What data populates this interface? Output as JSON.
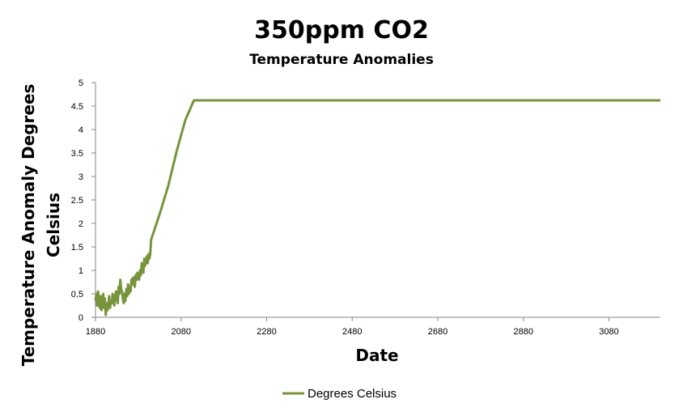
{
  "chart_data": {
    "type": "line",
    "title": "350ppm CO2",
    "subtitle": "Temperature Anomalies",
    "xlabel": "Date",
    "ylabel_line1": "Temperature Anomaly Degrees",
    "ylabel_line2": "Celsius",
    "xlim": [
      1880,
      3200
    ],
    "ylim": [
      0,
      5
    ],
    "x_ticks": [
      "1880",
      "2080",
      "2280",
      "2480",
      "2680",
      "2880",
      "3080"
    ],
    "y_ticks": [
      "0",
      "0.5",
      "1",
      "1.5",
      "2",
      "2.5",
      "3",
      "3.5",
      "4",
      "4.5",
      "5"
    ],
    "grid": false,
    "legend_position": "bottom",
    "colors": {
      "series": "#77933c",
      "axis": "#868686"
    },
    "series": [
      {
        "name": "Degrees Celsius",
        "x": [
          1880,
          1882,
          1884,
          1886,
          1888,
          1890,
          1892,
          1894,
          1896,
          1898,
          1900,
          1902,
          1904,
          1906,
          1908,
          1910,
          1912,
          1914,
          1916,
          1918,
          1920,
          1922,
          1924,
          1926,
          1928,
          1930,
          1932,
          1934,
          1936,
          1938,
          1940,
          1942,
          1944,
          1946,
          1948,
          1950,
          1952,
          1954,
          1956,
          1958,
          1960,
          1962,
          1964,
          1966,
          1968,
          1970,
          1972,
          1974,
          1976,
          1978,
          1980,
          1982,
          1984,
          1986,
          1988,
          1990,
          1992,
          1994,
          1996,
          1998,
          2000,
          2002,
          2004,
          2006,
          2008,
          2010,
          2030,
          2050,
          2070,
          2090,
          2110,
          2120,
          3200
        ],
        "y": [
          0.35,
          0.5,
          0.25,
          0.55,
          0.3,
          0.2,
          0.45,
          0.15,
          0.35,
          0.5,
          0.2,
          0.4,
          0.05,
          0.3,
          0.15,
          0.25,
          0.45,
          0.2,
          0.35,
          0.3,
          0.5,
          0.35,
          0.25,
          0.45,
          0.55,
          0.4,
          0.3,
          0.65,
          0.5,
          0.8,
          0.6,
          0.55,
          0.4,
          0.3,
          0.5,
          0.35,
          0.6,
          0.45,
          0.7,
          0.5,
          0.65,
          0.55,
          0.8,
          0.7,
          0.85,
          0.75,
          0.65,
          0.9,
          0.8,
          0.95,
          0.85,
          0.8,
          1.0,
          0.9,
          1.15,
          1.05,
          0.95,
          1.25,
          1.1,
          1.2,
          1.3,
          1.15,
          1.35,
          1.25,
          1.35,
          1.65,
          2.2,
          2.8,
          3.55,
          4.2,
          4.62,
          4.62,
          4.62
        ]
      }
    ]
  }
}
